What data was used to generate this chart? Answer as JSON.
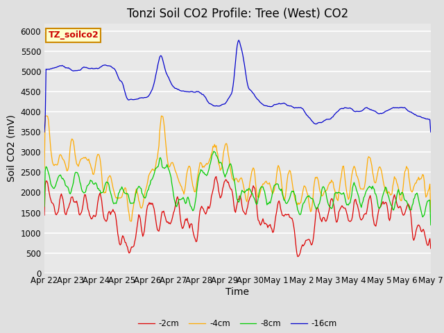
{
  "title": "Tonzi Soil CO2 Profile: Tree (West) CO2",
  "ylabel": "Soil CO2 (mV)",
  "xlabel": "Time",
  "legend_label": "TZ_soilco2",
  "series_labels": [
    "-2cm",
    "-4cm",
    "-8cm",
    "-16cm"
  ],
  "series_colors": [
    "#dd0000",
    "#ffaa00",
    "#00cc00",
    "#0000cc"
  ],
  "x_tick_labels": [
    "Apr 22",
    "Apr 23",
    "Apr 24",
    "Apr 25",
    "Apr 26",
    "Apr 27",
    "Apr 28",
    "Apr 29",
    "Apr 30",
    "May 1",
    "May 2",
    "May 3",
    "May 4",
    "May 5",
    "May 6",
    "May 7"
  ],
  "ylim": [
    0,
    6200
  ],
  "yticks": [
    0,
    500,
    1000,
    1500,
    2000,
    2500,
    3000,
    3500,
    4000,
    4500,
    5000,
    5500,
    6000
  ],
  "bg_color": "#e0e0e0",
  "plot_bg_color": "#e8e8e8",
  "grid_color": "white",
  "n_points": 480,
  "title_fontsize": 12,
  "label_fontsize": 10,
  "tick_fontsize": 8.5,
  "legend_box_color": "#ffffcc",
  "legend_box_edge_color": "#cc8800"
}
